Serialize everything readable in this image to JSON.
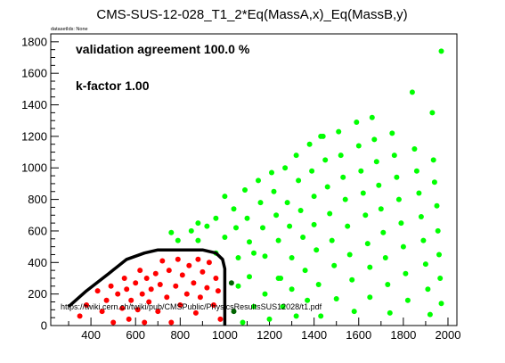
{
  "chart_data": {
    "type": "scatter",
    "title": "CMS-SUS-12-028_T1_2*Eq(MassA,x)_Eq(MassB,y)",
    "dataset_note": "datasetIds: None",
    "annotations": {
      "agreement": "validation agreement 100.0 %",
      "kfactor": "k-factor 1.00",
      "url": "https://twiki.cern.ch/twiki/pub/CMSPublic/PhysicsResultsSUS12028/t1.pdf"
    },
    "xlim": [
      220,
      2040
    ],
    "ylim": [
      0,
      1850
    ],
    "xticks": [
      400,
      600,
      800,
      1000,
      1200,
      1400,
      1600,
      1800,
      2000
    ],
    "yticks": [
      0,
      200,
      400,
      600,
      800,
      1000,
      1200,
      1400,
      1600,
      1800
    ],
    "colors": {
      "excluded": "#ff0000",
      "allowed": "#00ff00",
      "marginal": "#006400",
      "contour": "#000000"
    },
    "series": [
      {
        "key": "excluded",
        "points": [
          [
            350,
            60
          ],
          [
            380,
            130
          ],
          [
            430,
            220
          ],
          [
            450,
            90
          ],
          [
            470,
            160
          ],
          [
            490,
            250
          ],
          [
            500,
            20
          ],
          [
            520,
            200
          ],
          [
            540,
            110
          ],
          [
            550,
            300
          ],
          [
            560,
            230
          ],
          [
            570,
            40
          ],
          [
            580,
            160
          ],
          [
            600,
            270
          ],
          [
            610,
            100
          ],
          [
            620,
            350
          ],
          [
            630,
            200
          ],
          [
            640,
            20
          ],
          [
            650,
            300
          ],
          [
            660,
            150
          ],
          [
            670,
            230
          ],
          [
            690,
            330
          ],
          [
            700,
            90
          ],
          [
            710,
            260
          ],
          [
            720,
            410
          ],
          [
            740,
            180
          ],
          [
            750,
            350
          ],
          [
            760,
            20
          ],
          [
            780,
            250
          ],
          [
            790,
            420
          ],
          [
            800,
            130
          ],
          [
            810,
            320
          ],
          [
            830,
            200
          ],
          [
            840,
            380
          ],
          [
            860,
            270
          ],
          [
            870,
            80
          ],
          [
            880,
            420
          ],
          [
            890,
            180
          ],
          [
            900,
            340
          ],
          [
            920,
            240
          ],
          [
            930,
            400
          ],
          [
            950,
            130
          ],
          [
            960,
            300
          ],
          [
            970,
            220
          ],
          [
            980,
            40
          ]
        ]
      },
      {
        "key": "marginal",
        "points": [
          [
            1030,
            270
          ],
          [
            1040,
            90
          ]
        ]
      },
      {
        "key": "allowed",
        "points": [
          [
            760,
            590
          ],
          [
            790,
            540
          ],
          [
            850,
            600
          ],
          [
            880,
            540
          ],
          [
            880,
            650
          ],
          [
            920,
            630
          ],
          [
            960,
            680
          ],
          [
            960,
            460
          ],
          [
            1000,
            820
          ],
          [
            1000,
            560
          ],
          [
            1040,
            740
          ],
          [
            1050,
            620
          ],
          [
            1060,
            430
          ],
          [
            1060,
            250
          ],
          [
            1080,
            20
          ],
          [
            1090,
            860
          ],
          [
            1100,
            680
          ],
          [
            1110,
            530
          ],
          [
            1110,
            310
          ],
          [
            1130,
            120
          ],
          [
            1150,
            920
          ],
          [
            1160,
            780
          ],
          [
            1170,
            620
          ],
          [
            1180,
            440
          ],
          [
            1180,
            200
          ],
          [
            1200,
            40
          ],
          [
            1210,
            970
          ],
          [
            1220,
            850
          ],
          [
            1230,
            700
          ],
          [
            1240,
            540
          ],
          [
            1240,
            300
          ],
          [
            1260,
            120
          ],
          [
            1270,
            1000
          ],
          [
            1280,
            780
          ],
          [
            1290,
            630
          ],
          [
            1300,
            430
          ],
          [
            1300,
            230
          ],
          [
            1320,
            60
          ],
          [
            1320,
            1080
          ],
          [
            1330,
            920
          ],
          [
            1340,
            730
          ],
          [
            1350,
            560
          ],
          [
            1360,
            350
          ],
          [
            1370,
            160
          ],
          [
            1380,
            1150
          ],
          [
            1390,
            980
          ],
          [
            1400,
            820
          ],
          [
            1400,
            640
          ],
          [
            1410,
            480
          ],
          [
            1420,
            260
          ],
          [
            1430,
            60
          ],
          [
            1440,
            1200
          ],
          [
            1450,
            1050
          ],
          [
            1460,
            880
          ],
          [
            1470,
            710
          ],
          [
            1480,
            540
          ],
          [
            1490,
            380
          ],
          [
            1500,
            170
          ],
          [
            1510,
            1230
          ],
          [
            1520,
            1080
          ],
          [
            1530,
            940
          ],
          [
            1540,
            800
          ],
          [
            1550,
            630
          ],
          [
            1560,
            450
          ],
          [
            1570,
            290
          ],
          [
            1580,
            90
          ],
          [
            1590,
            1290
          ],
          [
            1600,
            1140
          ],
          [
            1610,
            980
          ],
          [
            1620,
            840
          ],
          [
            1630,
            700
          ],
          [
            1640,
            520
          ],
          [
            1650,
            370
          ],
          [
            1650,
            180
          ],
          [
            1660,
            1320
          ],
          [
            1670,
            1180
          ],
          [
            1680,
            1040
          ],
          [
            1690,
            890
          ],
          [
            1700,
            740
          ],
          [
            1710,
            590
          ],
          [
            1720,
            430
          ],
          [
            1730,
            260
          ],
          [
            1740,
            80
          ],
          [
            1750,
            1220
          ],
          [
            1760,
            1080
          ],
          [
            1770,
            940
          ],
          [
            1780,
            800
          ],
          [
            1790,
            650
          ],
          [
            1800,
            500
          ],
          [
            1810,
            330
          ],
          [
            1820,
            160
          ],
          [
            1840,
            1480
          ],
          [
            1850,
            1120
          ],
          [
            1860,
            980
          ],
          [
            1870,
            840
          ],
          [
            1880,
            690
          ],
          [
            1890,
            540
          ],
          [
            1900,
            390
          ],
          [
            1910,
            230
          ],
          [
            1920,
            70
          ],
          [
            1930,
            1350
          ],
          [
            1935,
            1050
          ],
          [
            1940,
            910
          ],
          [
            1950,
            760
          ],
          [
            1955,
            600
          ],
          [
            1960,
            450
          ],
          [
            1965,
            300
          ],
          [
            1970,
            1740
          ],
          [
            1970,
            140
          ],
          [
            1430,
            1200
          ],
          [
            1250,
            300
          ],
          [
            1130,
            460
          ]
        ]
      }
    ],
    "contour": [
      [
        300,
        120
      ],
      [
        380,
        220
      ],
      [
        480,
        330
      ],
      [
        560,
        420
      ],
      [
        640,
        460
      ],
      [
        700,
        480
      ],
      [
        900,
        480
      ],
      [
        960,
        460
      ],
      [
        990,
        420
      ],
      [
        1000,
        360
      ],
      [
        1000,
        0
      ]
    ]
  }
}
